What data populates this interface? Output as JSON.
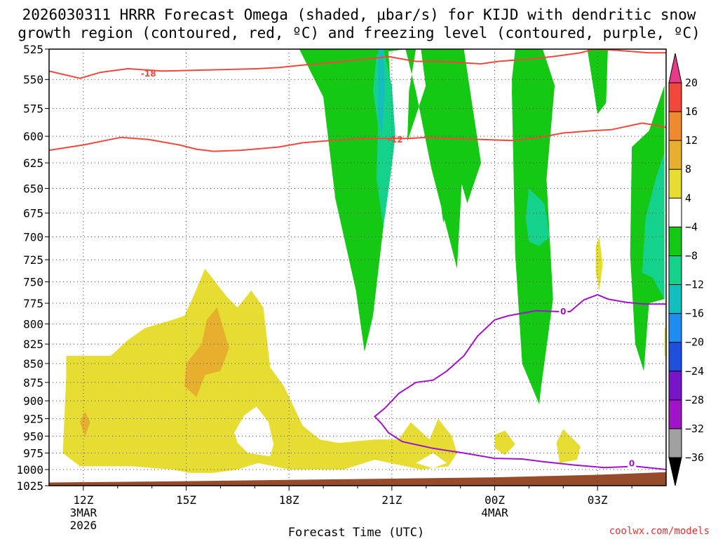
{
  "chart_data": {
    "type": "heatmap",
    "title_line1": "2026030311 HRRR Forecast Omega (shaded, μbar/s) for KIJD with dendritic snow",
    "title_line2": "growth region (contoured, red, ºC) and freezing level (contoured, purple, ºC)",
    "xlabel": "Forecast Time (UTC)",
    "y_axis": {
      "label": "",
      "scale": "log-pressure",
      "inverted": true,
      "ticks": [
        "525",
        "550",
        "575",
        "600",
        "625",
        "650",
        "675",
        "700",
        "725",
        "750",
        "775",
        "800",
        "825",
        "850",
        "875",
        "900",
        "925",
        "950",
        "975",
        "1000",
        "1025"
      ]
    },
    "x_axis": {
      "ticks": [
        {
          "label": "12Z",
          "sub1": "3MAR",
          "sub2": "2026",
          "hour": 12
        },
        {
          "label": "15Z",
          "sub1": "",
          "sub2": "",
          "hour": 15
        },
        {
          "label": "18Z",
          "sub1": "",
          "sub2": "",
          "hour": 18
        },
        {
          "label": "21Z",
          "sub1": "",
          "sub2": "",
          "hour": 21
        },
        {
          "label": "00Z",
          "sub1": "4MAR",
          "sub2": "",
          "hour": 24
        },
        {
          "label": "03Z",
          "sub1": "",
          "sub2": "",
          "hour": 27
        }
      ],
      "range_hours": [
        11,
        29
      ]
    },
    "colorbar": {
      "labels": [
        "20",
        "16",
        "12",
        "8",
        "4",
        "−4",
        "−8",
        "−12",
        "−16",
        "−20",
        "−24",
        "−28",
        "−32",
        "−36"
      ],
      "colors": [
        "#e8398a",
        "#f0493c",
        "#f08a2e",
        "#e6b02e",
        "#e6dc32",
        "#ffffff",
        "#14c814",
        "#14d28c",
        "#14bebe",
        "#1e8cf0",
        "#1e50dc",
        "#7814c8",
        "#a014c8",
        "#a0a0a0",
        "#000000"
      ],
      "top_triangle_color": "#e8398a",
      "bottom_triangle_color": "#000000"
    },
    "omega_regions": [
      {
        "color": "#14c814",
        "value_range": "-8 to -4",
        "points": [
          [
            16.55,
            525
          ],
          [
            18.3,
            525
          ],
          [
            19.0,
            565
          ],
          [
            19.35,
            660
          ],
          [
            19.95,
            760
          ],
          [
            20.2,
            835
          ],
          [
            20.45,
            790
          ],
          [
            20.9,
            645
          ],
          [
            21.0,
            575
          ],
          [
            20.9,
            527
          ],
          [
            21.4,
            525
          ],
          [
            21.7,
            560
          ],
          [
            22.15,
            630
          ],
          [
            22.9,
            735
          ],
          [
            23.15,
            580
          ],
          [
            22.9,
            525
          ],
          [
            22.05,
            550
          ],
          [
            21.45,
            605
          ],
          [
            21.5,
            560
          ],
          [
            21.7,
            525
          ],
          [
            21.85,
            525
          ],
          [
            22.5,
            685
          ],
          [
            22.95,
            635
          ],
          [
            23.2,
            665
          ],
          [
            23.6,
            625
          ],
          [
            23.1,
            525
          ],
          [
            25.4,
            525
          ],
          [
            25.2,
            555
          ],
          [
            25.4,
            575
          ],
          [
            25.7,
            770
          ],
          [
            25.3,
            900
          ],
          [
            25.0,
            840
          ],
          [
            24.6,
            720
          ],
          [
            24.5,
            550
          ],
          [
            24.6,
            525
          ],
          [
            16.55,
            525
          ]
        ]
      },
      {
        "color": "#14c814",
        "value_range": "-8 to -4",
        "points": [
          [
            24.6,
            525
          ],
          [
            25.4,
            525
          ],
          [
            25.75,
            555
          ],
          [
            25.5,
            645
          ],
          [
            25.6,
            760
          ],
          [
            25.3,
            905
          ],
          [
            24.8,
            850
          ],
          [
            24.6,
            720
          ],
          [
            24.5,
            560
          ]
        ]
      },
      {
        "color": "#14c814",
        "value_range": "-8 to -4",
        "points": [
          [
            26.7,
            525
          ],
          [
            27.3,
            525
          ],
          [
            27.25,
            570
          ],
          [
            27.0,
            580
          ]
        ]
      },
      {
        "color": "#14c814",
        "value_range": "-8 to -4",
        "points": [
          [
            28.95,
            555
          ],
          [
            28.95,
            770
          ],
          [
            28.5,
            775
          ],
          [
            28.35,
            860
          ],
          [
            28.1,
            825
          ],
          [
            27.95,
            720
          ],
          [
            28.0,
            610
          ],
          [
            28.5,
            595
          ]
        ]
      },
      {
        "color": "#14d28c",
        "value_range": "-12 to -8",
        "points": [
          [
            20.55,
            530
          ],
          [
            20.75,
            525
          ],
          [
            21.0,
            555
          ],
          [
            21.1,
            600
          ],
          [
            20.95,
            640
          ],
          [
            20.75,
            690
          ],
          [
            20.55,
            640
          ],
          [
            20.6,
            590
          ],
          [
            20.45,
            560
          ]
        ]
      },
      {
        "color": "#14d28c",
        "value_range": "-12 to -8",
        "points": [
          [
            25.0,
            650
          ],
          [
            25.45,
            665
          ],
          [
            25.6,
            700
          ],
          [
            25.3,
            710
          ],
          [
            25.0,
            705
          ],
          [
            24.9,
            680
          ]
        ]
      },
      {
        "color": "#14d28c",
        "value_range": "-12 to -8",
        "points": [
          [
            28.95,
            615
          ],
          [
            28.95,
            770
          ],
          [
            28.6,
            745
          ],
          [
            28.3,
            740
          ],
          [
            28.4,
            680
          ],
          [
            28.7,
            640
          ]
        ]
      },
      {
        "color": "#14bebe",
        "value_range": "-16 to -12",
        "points": [
          [
            20.6,
            525
          ],
          [
            20.75,
            525
          ],
          [
            20.8,
            560
          ],
          [
            20.7,
            600
          ],
          [
            20.6,
            580
          ]
        ]
      },
      {
        "color": "#e6dc32",
        "value_range": "4 to 8",
        "points": [
          [
            11.5,
            840
          ],
          [
            12.8,
            840
          ],
          [
            13.3,
            820
          ],
          [
            13.8,
            805
          ],
          [
            14.6,
            795
          ],
          [
            14.95,
            790
          ],
          [
            15.2,
            768
          ],
          [
            15.55,
            735
          ],
          [
            16.2,
            768
          ],
          [
            16.5,
            780
          ],
          [
            16.9,
            760
          ],
          [
            17.25,
            780
          ],
          [
            17.45,
            855
          ],
          [
            17.85,
            880
          ],
          [
            18.4,
            935
          ],
          [
            18.9,
            955
          ],
          [
            19.45,
            960
          ],
          [
            20.5,
            955
          ],
          [
            21.2,
            955
          ],
          [
            21.55,
            930
          ],
          [
            22.1,
            955
          ],
          [
            22.35,
            925
          ],
          [
            22.75,
            950
          ],
          [
            22.9,
            975
          ],
          [
            22.65,
            995
          ],
          [
            21.85,
            1000
          ],
          [
            20.5,
            985
          ],
          [
            19.6,
            1000
          ],
          [
            18.7,
            1000
          ],
          [
            18.0,
            1000
          ],
          [
            17.1,
            990
          ],
          [
            16.5,
            1000
          ],
          [
            15.8,
            1005
          ],
          [
            15.1,
            1005
          ],
          [
            14.6,
            1000
          ],
          [
            13.4,
            995
          ],
          [
            12.6,
            995
          ],
          [
            11.9,
            995
          ],
          [
            11.4,
            975
          ],
          [
            11.45,
            920
          ],
          [
            11.5,
            870
          ]
        ]
      },
      {
        "color": "#ffffff",
        "value_range": "-4 to 4",
        "points": [
          [
            16.4,
            945
          ],
          [
            16.7,
            920
          ],
          [
            17.05,
            908
          ],
          [
            17.4,
            930
          ],
          [
            17.55,
            962
          ],
          [
            17.45,
            980
          ],
          [
            16.8,
            975
          ],
          [
            16.5,
            960
          ]
        ]
      },
      {
        "color": "#ffffff",
        "value_range": "-4 to 4",
        "points": [
          [
            21.7,
            990
          ],
          [
            22.2,
            975
          ],
          [
            22.6,
            990
          ],
          [
            22.2,
            998
          ]
        ]
      },
      {
        "color": "#e6dc32",
        "value_range": "4 to 8",
        "points": [
          [
            24.0,
            948
          ],
          [
            24.3,
            942
          ],
          [
            24.6,
            962
          ],
          [
            24.3,
            978
          ],
          [
            24.0,
            968
          ]
        ]
      },
      {
        "color": "#e6dc32",
        "value_range": "4 to 8",
        "points": [
          [
            25.8,
            960
          ],
          [
            26.0,
            940
          ],
          [
            26.5,
            965
          ],
          [
            26.4,
            985
          ],
          [
            25.9,
            990
          ]
        ]
      },
      {
        "color": "#e6dc32",
        "value_range": "4 to 8",
        "points": [
          [
            26.95,
            710
          ],
          [
            27.05,
            700
          ],
          [
            27.15,
            730
          ],
          [
            27.05,
            760
          ],
          [
            26.95,
            740
          ]
        ]
      },
      {
        "color": "#e6dc32",
        "value_range": "4 to 8",
        "points": [
          [
            28.95,
            805
          ],
          [
            29.0,
            805
          ],
          [
            29.0,
            840
          ],
          [
            28.95,
            840
          ]
        ]
      },
      {
        "color": "#e6b02e",
        "value_range": "8 to 12",
        "points": [
          [
            15.0,
            850
          ],
          [
            15.45,
            825
          ],
          [
            15.6,
            795
          ],
          [
            15.9,
            780
          ],
          [
            16.25,
            830
          ],
          [
            16.0,
            860
          ],
          [
            15.55,
            865
          ],
          [
            15.3,
            895
          ],
          [
            14.95,
            880
          ]
        ]
      },
      {
        "color": "#e6b02e",
        "value_range": "8 to 12",
        "points": [
          [
            11.9,
            930
          ],
          [
            12.05,
            915
          ],
          [
            12.2,
            930
          ],
          [
            12.05,
            950
          ]
        ]
      }
    ],
    "dgz_contours": [
      {
        "label": "-18",
        "color": "#f0493c",
        "label_at": [
          13.9,
          545
        ],
        "points": [
          [
            11,
            543
          ],
          [
            11.9,
            549
          ],
          [
            12.5,
            544
          ],
          [
            13.3,
            541
          ],
          [
            14.3,
            543
          ],
          [
            15.7,
            542
          ],
          [
            17.1,
            541
          ],
          [
            17.7,
            540
          ],
          [
            18.4,
            538
          ],
          [
            19.6,
            535
          ],
          [
            20.9,
            531
          ],
          [
            21.3,
            533
          ],
          [
            21.7,
            535
          ],
          [
            22.4,
            535
          ],
          [
            23.6,
            537
          ],
          [
            24.1,
            535
          ],
          [
            25.0,
            533
          ],
          [
            25.7,
            531
          ],
          [
            26.5,
            528
          ],
          [
            26.9,
            525
          ],
          [
            27.6,
            526
          ],
          [
            28.5,
            528
          ],
          [
            29,
            528
          ]
        ]
      },
      {
        "label": "-12",
        "color": "#f0493c",
        "label_at": [
          21.1,
          603
        ],
        "points": [
          [
            11,
            613
          ],
          [
            12.0,
            608
          ],
          [
            13.1,
            601
          ],
          [
            13.9,
            603
          ],
          [
            14.8,
            608
          ],
          [
            15.3,
            612
          ],
          [
            15.8,
            614
          ],
          [
            16.6,
            613
          ],
          [
            17.7,
            610
          ],
          [
            18.4,
            606
          ],
          [
            19.2,
            604
          ],
          [
            20.1,
            602
          ],
          [
            20.5,
            602
          ],
          [
            21.0,
            602
          ],
          [
            21.5,
            602
          ],
          [
            22.0,
            601
          ],
          [
            23.6,
            603
          ],
          [
            24.5,
            604
          ],
          [
            25.3,
            601
          ],
          [
            26.0,
            597
          ],
          [
            26.8,
            595
          ],
          [
            27.4,
            594
          ],
          [
            28.0,
            590
          ],
          [
            28.3,
            588
          ],
          [
            28.7,
            590
          ],
          [
            29,
            592
          ]
        ]
      }
    ],
    "freezing_level": {
      "label": "0",
      "color": "#a014c8",
      "label_at_upper": [
        26.0,
        785
      ],
      "label_at_lower": [
        28.0,
        991
      ],
      "points": [
        [
          29,
          776
        ],
        [
          28.4,
          776
        ],
        [
          27.85,
          774
        ],
        [
          27.3,
          770
        ],
        [
          27.0,
          765
        ],
        [
          26.6,
          771
        ],
        [
          26.2,
          785
        ],
        [
          25.9,
          785
        ],
        [
          25.2,
          784
        ],
        [
          24.4,
          790
        ],
        [
          24.0,
          795
        ],
        [
          23.5,
          815
        ],
        [
          23.1,
          840
        ],
        [
          22.6,
          860
        ],
        [
          22.2,
          872
        ],
        [
          21.7,
          875
        ],
        [
          21.2,
          890
        ],
        [
          20.8,
          910
        ],
        [
          20.5,
          922
        ],
        [
          20.7,
          932
        ],
        [
          20.9,
          945
        ],
        [
          21.3,
          958
        ],
        [
          22.2,
          968
        ],
        [
          23.1,
          975
        ],
        [
          24.0,
          983
        ],
        [
          24.8,
          984
        ],
        [
          25.4,
          988
        ],
        [
          26.3,
          993
        ],
        [
          27.2,
          997
        ],
        [
          28.1,
          995
        ],
        [
          29,
          1000
        ]
      ]
    },
    "terrain": {
      "color": "#964b2b",
      "surface_pressure": [
        [
          11,
          1020
        ],
        [
          15,
          1018
        ],
        [
          18,
          1016
        ],
        [
          21,
          1014
        ],
        [
          24,
          1012
        ],
        [
          27,
          1008
        ],
        [
          29,
          1004
        ]
      ]
    }
  },
  "credit": "coolwx.com/models"
}
